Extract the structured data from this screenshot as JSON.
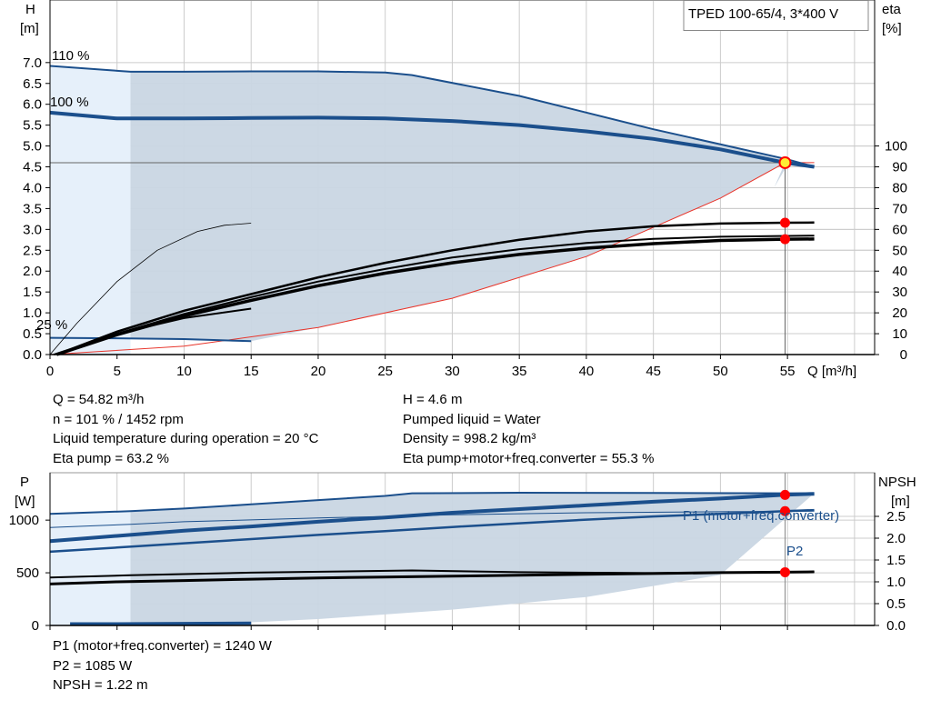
{
  "chart_data": [
    {
      "type": "line",
      "title": "TPED 100-65/4, 3*400 V",
      "xlabel": "Q [m³/h]",
      "ylabel_left": [
        "H",
        "[m]"
      ],
      "ylabel_right": [
        "eta",
        "[%]"
      ],
      "xlim": [
        0,
        61.5
      ],
      "ylim_left": [
        0,
        8.5
      ],
      "ylim_right": [
        0,
        170
      ],
      "x_ticks": [
        0,
        5,
        10,
        15,
        20,
        25,
        30,
        35,
        40,
        45,
        50,
        55
      ],
      "y_left_ticks": [
        "0.0",
        "0.5",
        "1.0",
        "1.5",
        "2.0",
        "2.5",
        "3.0",
        "3.5",
        "4.0",
        "4.5",
        "5.0",
        "5.5",
        "6.0",
        "6.5",
        "7.0"
      ],
      "y_right_ticks": [
        "0",
        "10",
        "20",
        "30",
        "40",
        "50",
        "60",
        "70",
        "80",
        "90",
        "100"
      ],
      "speed_labels": [
        "110 %",
        "100 %",
        "25 %"
      ],
      "colors": {
        "head": "#1b4f8c",
        "eta": "#000000",
        "system": "#e8342a",
        "region": "#c9d6e3",
        "light_region": "#e6f0fa",
        "grid": "#cccccc",
        "point": "#ff0000",
        "duty_point_fill": "#ffee33"
      },
      "series": [
        {
          "role": "head",
          "speed": "110 %",
          "x": [
            0,
            6,
            10,
            15,
            20,
            25,
            27,
            35,
            45,
            55,
            57
          ],
          "y": [
            6.92,
            6.78,
            6.78,
            6.79,
            6.79,
            6.76,
            6.7,
            6.2,
            5.4,
            4.68,
            4.5
          ]
        },
        {
          "role": "head",
          "speed": "100 %",
          "x": [
            0,
            5,
            10,
            15,
            20,
            25,
            30,
            35,
            40,
            45,
            50,
            54.82,
            57
          ],
          "y": [
            5.8,
            5.66,
            5.66,
            5.67,
            5.68,
            5.66,
            5.6,
            5.5,
            5.35,
            5.17,
            4.92,
            4.6,
            4.5
          ]
        },
        {
          "role": "head",
          "speed": "25 %",
          "x": [
            0,
            5,
            10,
            15
          ],
          "y": [
            0.4,
            0.39,
            0.37,
            0.32
          ]
        },
        {
          "role": "eta",
          "label": "Eta pump",
          "x": [
            0.5,
            5,
            10,
            15,
            20,
            25,
            30,
            35,
            40,
            45,
            50,
            54.82,
            57
          ],
          "y": [
            0,
            11,
            21,
            29,
            37,
            44,
            50,
            55,
            59,
            61.5,
            62.8,
            63.2,
            63.3
          ]
        },
        {
          "role": "eta",
          "label": "Eta pump+motor+freq.converter",
          "x": [
            0.5,
            5,
            10,
            15,
            20,
            25,
            30,
            35,
            40,
            45,
            50,
            54.82,
            57
          ],
          "y": [
            0,
            9.5,
            18.5,
            26,
            33,
            39,
            44,
            48,
            51,
            53.2,
            54.7,
            55.3,
            55.4
          ]
        },
        {
          "role": "eta",
          "label": "eta 110 %",
          "x": [
            0.5,
            5,
            10,
            15,
            20,
            25,
            30,
            35,
            40,
            45,
            50,
            57
          ],
          "y": [
            0,
            10,
            19.5,
            27.5,
            35,
            41,
            46.5,
            50.5,
            53.5,
            55.5,
            56.5,
            57
          ]
        },
        {
          "role": "eta",
          "label": "eta 25 %",
          "x": [
            0,
            2,
            5,
            8,
            11,
            13,
            15
          ],
          "y": [
            0,
            15,
            35,
            50,
            59,
            62,
            63
          ]
        },
        {
          "role": "system",
          "label": "system curve",
          "x": [
            0,
            10,
            20,
            30,
            40,
            50,
            54.82,
            57
          ],
          "y": [
            0,
            0.2,
            0.65,
            1.35,
            2.35,
            3.75,
            4.6,
            4.6
          ]
        }
      ],
      "points": [
        {
          "series": "head 100 %",
          "x": 54.82,
          "y": 4.6,
          "duty_point": true
        },
        {
          "series": "Eta pump",
          "x": 54.82,
          "y": 63.2
        },
        {
          "series": "Eta pump+motor+freq.converter",
          "x": 54.82,
          "y": 55.3
        }
      ]
    },
    {
      "type": "line",
      "xlabel": "",
      "ylabel_left": [
        "P",
        "[W]"
      ],
      "ylabel_right": [
        "NPSH",
        "[m]"
      ],
      "xlim": [
        0,
        61.5
      ],
      "ylim_left": [
        0,
        1450
      ],
      "ylim_right": [
        0,
        3.5
      ],
      "y_left_ticks": [
        "0",
        "500",
        "1000"
      ],
      "y_right_ticks": [
        "0.0",
        "0.5",
        "1.0",
        "1.5",
        "2.0",
        "2.5"
      ],
      "series_labels": [
        "P1 (motor+freq.converter)",
        "P2"
      ],
      "series": [
        {
          "role": "P1",
          "label": "P1 (motor+freq.converter)",
          "x": [
            0,
            5,
            10,
            15,
            20,
            25,
            30,
            35,
            40,
            45,
            50,
            54.82,
            57
          ],
          "y": [
            800,
            850,
            900,
            940,
            985,
            1025,
            1070,
            1105,
            1140,
            1175,
            1205,
            1240,
            1250
          ]
        },
        {
          "role": "P2",
          "label": "P2",
          "x": [
            0,
            5,
            10,
            15,
            20,
            25,
            30,
            35,
            40,
            45,
            50,
            54.82,
            57
          ],
          "y": [
            700,
            740,
            780,
            820,
            860,
            895,
            935,
            970,
            1005,
            1035,
            1060,
            1085,
            1095
          ]
        },
        {
          "role": "P1",
          "label": "P1 110 %",
          "x": [
            0,
            6,
            10,
            15,
            20,
            25,
            27,
            35,
            45,
            55,
            57
          ],
          "y": [
            1060,
            1085,
            1110,
            1150,
            1190,
            1230,
            1255,
            1260,
            1258,
            1255,
            1255
          ]
        },
        {
          "role": "P2",
          "label": "P2 110 %",
          "x": [
            0,
            6,
            10,
            20,
            30,
            40,
            50,
            57
          ],
          "y": [
            930,
            960,
            985,
            1020,
            1050,
            1070,
            1080,
            1085
          ]
        },
        {
          "role": "NPSH",
          "label": "NPSH",
          "x": [
            0,
            5,
            10,
            15,
            20,
            25,
            30,
            35,
            40,
            45,
            50,
            54.82,
            57
          ],
          "y": [
            0.95,
            1.0,
            1.03,
            1.06,
            1.09,
            1.11,
            1.13,
            1.15,
            1.17,
            1.19,
            1.21,
            1.22,
            1.23
          ]
        },
        {
          "role": "NPSH",
          "label": "NPSH 110 %",
          "x": [
            0,
            6,
            15,
            27,
            35,
            45,
            55,
            57
          ],
          "y": [
            1.1,
            1.15,
            1.21,
            1.26,
            1.22,
            1.2,
            1.22,
            1.23
          ]
        },
        {
          "role": "P1",
          "label": "P1 25 %",
          "x": [
            1.5,
            5,
            10,
            15
          ],
          "y": [
            15,
            15,
            18,
            22
          ]
        }
      ],
      "points": [
        {
          "series": "P1",
          "x": 54.82,
          "y": 1240
        },
        {
          "series": "P2",
          "x": 54.82,
          "y": 1085
        },
        {
          "series": "NPSH",
          "x": 54.82,
          "y": 1.22
        }
      ]
    }
  ],
  "info_top_left": [
    "Q = 54.82 m³/h",
    "n = 101 % / 1452 rpm",
    "Liquid temperature during operation = 20 °C",
    "Eta pump = 63.2 %"
  ],
  "info_top_right": [
    "H = 4.6 m",
    "Pumped liquid = Water",
    "Density = 998.2 kg/m³",
    "Eta pump+motor+freq.converter = 55.3 %"
  ],
  "info_bottom": [
    "P1 (motor+freq.converter) = 1240 W",
    "P2 = 1085 W",
    "NPSH = 1.22 m"
  ]
}
